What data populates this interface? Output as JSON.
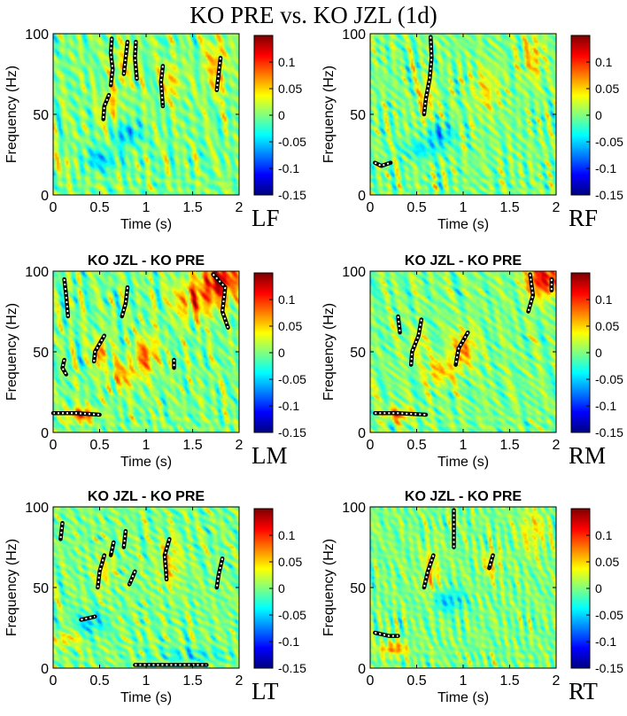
{
  "chart_data": {
    "type": "heatmap",
    "title": "KO PRE vs. KO JZL (1d)",
    "colormap": "jet",
    "colorbar": {
      "range": [
        -0.15,
        0.15
      ],
      "ticks": [
        0.1,
        0.05,
        0,
        -0.05,
        -0.1,
        -0.15
      ],
      "tick_labels": [
        "0.1",
        "0.05",
        "0",
        "-0.05",
        "-0.1",
        "-0.15"
      ]
    },
    "panels": [
      {
        "id": "LF",
        "region": "LF",
        "subtitle": "",
        "xlabel": "Time (s)",
        "ylabel": "Frequency (Hz)",
        "xlim": [
          0,
          2
        ],
        "ylim": [
          0,
          100
        ],
        "xticks": [
          0,
          0.5,
          1,
          1.5,
          2
        ],
        "xtick_labels": [
          "0",
          "0.5",
          "1",
          "1.5",
          "2"
        ],
        "yticks": [
          0,
          50,
          100
        ],
        "ytick_labels": [
          "0",
          "50",
          "100"
        ],
        "hotspots": [
          {
            "t": 0.6,
            "f": 55,
            "v": 0.05,
            "st": 0.06,
            "sf": 8
          },
          {
            "t": 0.75,
            "f": 80,
            "v": 0.04,
            "st": 0.08,
            "sf": 10
          },
          {
            "t": 1.25,
            "f": 70,
            "v": 0.05,
            "st": 0.08,
            "sf": 8
          },
          {
            "t": 1.75,
            "f": 80,
            "v": 0.06,
            "st": 0.08,
            "sf": 12
          },
          {
            "t": 0.8,
            "f": 38,
            "v": -0.06,
            "st": 0.1,
            "sf": 5
          },
          {
            "t": 0.5,
            "f": 22,
            "v": -0.05,
            "st": 0.15,
            "sf": 5
          },
          {
            "t": 0.15,
            "f": 20,
            "v": 0.03,
            "st": 0.1,
            "sf": 3
          }
        ],
        "significant_regions": [
          [
            [
              0.63,
              97
            ],
            [
              0.62,
              88
            ],
            [
              0.64,
              78
            ],
            [
              0.62,
              68
            ]
          ],
          [
            [
              0.6,
              62
            ],
            [
              0.55,
              55
            ],
            [
              0.54,
              47
            ]
          ],
          [
            [
              0.8,
              95
            ],
            [
              0.78,
              85
            ],
            [
              0.76,
              75
            ]
          ],
          [
            [
              0.89,
              95
            ],
            [
              0.88,
              85
            ],
            [
              0.9,
              72
            ]
          ],
          [
            [
              1.18,
              80
            ],
            [
              1.16,
              70
            ],
            [
              1.18,
              55
            ]
          ],
          [
            [
              1.8,
              85
            ],
            [
              1.78,
              75
            ],
            [
              1.76,
              65
            ]
          ]
        ]
      },
      {
        "id": "RF",
        "region": "RF",
        "subtitle": "",
        "xlabel": "Time (s)",
        "ylabel": "Frequency (Hz)",
        "xlim": [
          0,
          2
        ],
        "ylim": [
          0,
          100
        ],
        "xticks": [
          0,
          0.5,
          1,
          1.5,
          2
        ],
        "xtick_labels": [
          "0",
          "0.5",
          "1",
          "1.5",
          "2"
        ],
        "yticks": [
          0,
          50,
          100
        ],
        "ytick_labels": [
          "0",
          "50",
          "100"
        ],
        "hotspots": [
          {
            "t": 0.6,
            "f": 60,
            "v": 0.05,
            "st": 0.06,
            "sf": 10
          },
          {
            "t": 1.25,
            "f": 65,
            "v": 0.04,
            "st": 0.1,
            "sf": 10
          },
          {
            "t": 1.75,
            "f": 85,
            "v": 0.05,
            "st": 0.08,
            "sf": 10
          },
          {
            "t": 0.75,
            "f": 38,
            "v": -0.06,
            "st": 0.1,
            "sf": 5
          },
          {
            "t": 0.55,
            "f": 28,
            "v": -0.04,
            "st": 0.15,
            "sf": 4
          }
        ],
        "significant_regions": [
          [
            [
              0.65,
              98
            ],
            [
              0.66,
              85
            ],
            [
              0.64,
              72
            ],
            [
              0.6,
              60
            ],
            [
              0.58,
              50
            ]
          ],
          [
            [
              0.05,
              20
            ],
            [
              0.12,
              18
            ],
            [
              0.22,
              20
            ]
          ]
        ]
      },
      {
        "id": "LM",
        "region": "LM",
        "subtitle": "KO JZL - KO PRE",
        "xlabel": "Time (s)",
        "ylabel": "Frequency (Hz)",
        "xlim": [
          0,
          2
        ],
        "ylim": [
          0,
          100
        ],
        "xticks": [
          0,
          0.5,
          1,
          1.5,
          2
        ],
        "xtick_labels": [
          "0",
          "0.5",
          "1",
          "1.5",
          "2"
        ],
        "yticks": [
          0,
          50,
          100
        ],
        "ytick_labels": [
          "0",
          "50",
          "100"
        ],
        "hotspots": [
          {
            "t": 1.8,
            "f": 95,
            "v": 0.12,
            "st": 0.15,
            "sf": 10
          },
          {
            "t": 1.5,
            "f": 82,
            "v": 0.07,
            "st": 0.15,
            "sf": 8
          },
          {
            "t": 1.0,
            "f": 48,
            "v": 0.08,
            "st": 0.08,
            "sf": 8
          },
          {
            "t": 0.5,
            "f": 50,
            "v": 0.08,
            "st": 0.05,
            "sf": 6
          },
          {
            "t": 0.75,
            "f": 36,
            "v": 0.06,
            "st": 0.1,
            "sf": 6
          },
          {
            "t": 0.3,
            "f": 11,
            "v": 0.1,
            "st": 0.1,
            "sf": 3
          }
        ],
        "significant_regions": [
          [
            [
              0.12,
              95
            ],
            [
              0.14,
              85
            ],
            [
              0.16,
              72
            ]
          ],
          [
            [
              0.12,
              45
            ],
            [
              0.1,
              40
            ],
            [
              0.14,
              36
            ]
          ],
          [
            [
              0.55,
              60
            ],
            [
              0.45,
              50
            ],
            [
              0.44,
              44
            ]
          ],
          [
            [
              0.8,
              90
            ],
            [
              0.78,
              80
            ],
            [
              0.74,
              72
            ]
          ],
          [
            [
              1.3,
              45
            ],
            [
              1.3,
              40
            ]
          ],
          [
            [
              1.72,
              98
            ],
            [
              1.85,
              90
            ],
            [
              1.82,
              75
            ],
            [
              1.88,
              65
            ]
          ],
          [
            [
              0.0,
              12
            ],
            [
              0.25,
              12
            ],
            [
              0.5,
              11
            ]
          ]
        ]
      },
      {
        "id": "RM",
        "region": "RM",
        "subtitle": "KO JZL - KO PRE",
        "xlabel": "Time (s)",
        "ylabel": "Frequency (Hz)",
        "xlim": [
          0,
          2
        ],
        "ylim": [
          0,
          100
        ],
        "xticks": [
          0,
          0.5,
          1,
          1.5,
          2
        ],
        "xtick_labels": [
          "0",
          "0.5",
          "1",
          "1.5",
          "2"
        ],
        "yticks": [
          0,
          50,
          100
        ],
        "ytick_labels": [
          "0",
          "50",
          "100"
        ],
        "hotspots": [
          {
            "t": 1.85,
            "f": 95,
            "v": 0.12,
            "st": 0.12,
            "sf": 8
          },
          {
            "t": 1.0,
            "f": 52,
            "v": 0.08,
            "st": 0.08,
            "sf": 8
          },
          {
            "t": 0.75,
            "f": 38,
            "v": 0.06,
            "st": 0.1,
            "sf": 6
          },
          {
            "t": 0.5,
            "f": 55,
            "v": 0.04,
            "st": 0.06,
            "sf": 6
          },
          {
            "t": 0.3,
            "f": 11,
            "v": 0.08,
            "st": 0.1,
            "sf": 3
          }
        ],
        "significant_regions": [
          [
            [
              0.3,
              72
            ],
            [
              0.32,
              62
            ]
          ],
          [
            [
              0.55,
              70
            ],
            [
              0.52,
              60
            ],
            [
              0.45,
              50
            ],
            [
              0.44,
              42
            ]
          ],
          [
            [
              1.05,
              62
            ],
            [
              0.95,
              52
            ],
            [
              0.92,
              42
            ]
          ],
          [
            [
              1.72,
              98
            ],
            [
              1.75,
              85
            ],
            [
              1.7,
              75
            ]
          ],
          [
            [
              1.95,
              95
            ],
            [
              1.95,
              88
            ]
          ],
          [
            [
              0.05,
              12
            ],
            [
              0.3,
              12
            ],
            [
              0.6,
              11
            ]
          ]
        ]
      },
      {
        "id": "LT",
        "region": "LT",
        "subtitle": "KO JZL - KO PRE",
        "xlabel": "Time (s)",
        "ylabel": "Frequency (Hz)",
        "xlim": [
          0,
          2
        ],
        "ylim": [
          0,
          100
        ],
        "xticks": [
          0,
          0.5,
          1,
          1.5,
          2
        ],
        "xtick_labels": [
          "0",
          "0.5",
          "1",
          "1.5",
          "2"
        ],
        "yticks": [
          0,
          50,
          100
        ],
        "ytick_labels": [
          "0",
          "50",
          "100"
        ],
        "hotspots": [
          {
            "t": 1.25,
            "f": 65,
            "v": 0.05,
            "st": 0.08,
            "sf": 10
          },
          {
            "t": 0.55,
            "f": 60,
            "v": 0.04,
            "st": 0.06,
            "sf": 8
          },
          {
            "t": 0.15,
            "f": 18,
            "v": 0.05,
            "st": 0.1,
            "sf": 3
          },
          {
            "t": 0.4,
            "f": 28,
            "v": -0.05,
            "st": 0.12,
            "sf": 5
          },
          {
            "t": 1.5,
            "f": 8,
            "v": -0.03,
            "st": 0.3,
            "sf": 3
          }
        ],
        "significant_regions": [
          [
            [
              0.1,
              90
            ],
            [
              0.08,
              80
            ]
          ],
          [
            [
              0.55,
              70
            ],
            [
              0.5,
              60
            ],
            [
              0.48,
              50
            ]
          ],
          [
            [
              0.65,
              78
            ],
            [
              0.62,
              70
            ]
          ],
          [
            [
              0.78,
              85
            ],
            [
              0.76,
              75
            ]
          ],
          [
            [
              0.88,
              60
            ],
            [
              0.82,
              52
            ]
          ],
          [
            [
              1.25,
              80
            ],
            [
              1.2,
              70
            ],
            [
              1.22,
              55
            ]
          ],
          [
            [
              1.82,
              68
            ],
            [
              1.78,
              58
            ],
            [
              1.76,
              50
            ]
          ],
          [
            [
              0.3,
              30
            ],
            [
              0.45,
              32
            ]
          ],
          [
            [
              0.88,
              2
            ],
            [
              1.65,
              2
            ]
          ]
        ]
      },
      {
        "id": "RT",
        "region": "RT",
        "subtitle": "KO JZL - KO PRE",
        "xlabel": "Time (s)",
        "ylabel": "Frequency (Hz)",
        "xlim": [
          0,
          2
        ],
        "ylim": [
          0,
          100
        ],
        "xticks": [
          0,
          0.5,
          1,
          1.5,
          2
        ],
        "xtick_labels": [
          "0",
          "0.5",
          "1",
          "1.5",
          "2"
        ],
        "yticks": [
          0,
          50,
          100
        ],
        "ytick_labels": [
          "0",
          "50",
          "100"
        ],
        "hotspots": [
          {
            "t": 0.65,
            "f": 60,
            "v": 0.05,
            "st": 0.06,
            "sf": 10
          },
          {
            "t": 1.3,
            "f": 65,
            "v": 0.05,
            "st": 0.06,
            "sf": 6
          },
          {
            "t": 1.75,
            "f": 85,
            "v": 0.04,
            "st": 0.1,
            "sf": 10
          },
          {
            "t": 0.25,
            "f": 12,
            "v": 0.07,
            "st": 0.1,
            "sf": 3
          },
          {
            "t": 0.85,
            "f": 42,
            "v": -0.05,
            "st": 0.12,
            "sf": 5
          }
        ],
        "significant_regions": [
          [
            [
              0.68,
              70
            ],
            [
              0.62,
              60
            ],
            [
              0.58,
              50
            ]
          ],
          [
            [
              0.9,
              98
            ],
            [
              0.9,
              85
            ],
            [
              0.9,
              75
            ]
          ],
          [
            [
              1.32,
              70
            ],
            [
              1.28,
              62
            ]
          ],
          [
            [
              0.05,
              22
            ],
            [
              0.2,
              20
            ],
            [
              0.3,
              20
            ]
          ]
        ]
      }
    ]
  }
}
